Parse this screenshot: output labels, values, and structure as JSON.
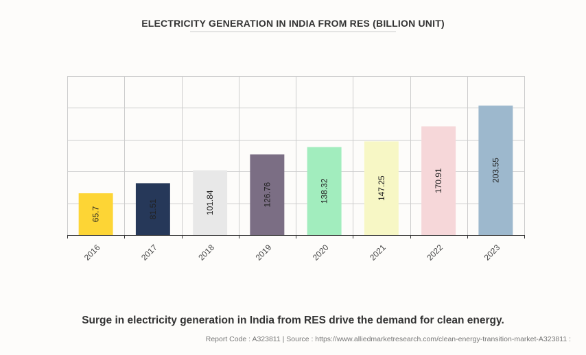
{
  "chart_data": {
    "type": "bar",
    "title": "ELECTRICITY GENERATION IN INDIA FROM RES (BILLION UNIT)",
    "xlabel": "",
    "ylabel": "",
    "ylim": [
      0,
      250
    ],
    "y_grid_step": 50,
    "grid": true,
    "y_tick_labels_visible": false,
    "categories": [
      "2016",
      "2017",
      "2018",
      "2019",
      "2020",
      "2021",
      "2022",
      "2023"
    ],
    "values": [
      65.7,
      81.51,
      101.84,
      126.76,
      138.32,
      147.25,
      170.91,
      203.55
    ],
    "value_labels": [
      "65.7",
      "81.51",
      "101.84",
      "126.76",
      "138.32",
      "147.25",
      "170.91",
      "203.55"
    ],
    "colors": [
      "#fdd535",
      "#263859",
      "#e8e8e8",
      "#7b6e84",
      "#a2edbe",
      "#f7f7c5",
      "#f6d7d9",
      "#9db8cd"
    ],
    "label_orientation": "vertical",
    "x_tick_rotation": "-45deg"
  },
  "caption": "Surge in electricity generation in India from RES drive the demand for clean energy.",
  "source_line": "Report Code : A323811  |  Source : https://www.alliedmarketresearch.com/clean-energy-transition-market-A323811 :"
}
